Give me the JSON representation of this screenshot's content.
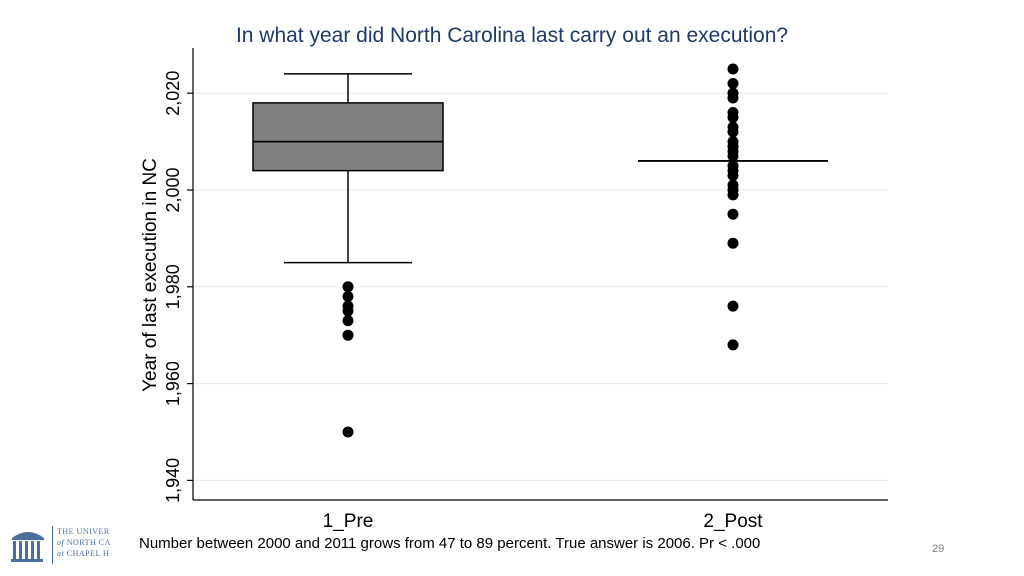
{
  "footnote": "Number between 2000 and 2011 grows from 47 to 89 percent. True answer is 2006. Pr < .000",
  "page_number": "29",
  "logo": {
    "line1": "THE UNIVER",
    "line2_prefix": "of",
    "line2_rest": "NORTH CA",
    "line3_prefix": "at",
    "line3_rest": "CHAPEL H",
    "color": "#4b6f9c",
    "icon": "old-well-icon"
  },
  "chart_data": {
    "type": "box",
    "title": "In what year did North Carolina last carry out an execution?",
    "ylabel": "Year of last execution in NC",
    "xlabel": "",
    "ylim": [
      1940,
      2024
    ],
    "yticks": [
      1940,
      1960,
      1980,
      2000,
      2020
    ],
    "ytick_labels": [
      "1,940",
      "1,960",
      "1,980",
      "2,000",
      "2,020"
    ],
    "grid": true,
    "box_color": "#808080",
    "categories": [
      "1_Pre",
      "2_Post"
    ],
    "boxes": [
      {
        "category": "1_Pre",
        "whisker_low": 1985,
        "q1": 2004,
        "median": 2010,
        "q3": 2018,
        "whisker_high": 2024,
        "outliers": [
          1980,
          1978,
          1976,
          1975,
          1973,
          1970,
          1950
        ]
      },
      {
        "category": "2_Post",
        "whisker_low": 2006,
        "q1": 2006,
        "median": 2006,
        "q3": 2006,
        "whisker_high": 2006,
        "outliers": [
          2025,
          2022,
          2020,
          2019,
          2016,
          2015,
          2013,
          2012,
          2010,
          2009,
          2008,
          2007,
          2005,
          2004,
          2003,
          2001,
          2000,
          1999,
          1995,
          1989,
          1976,
          1968
        ]
      }
    ]
  }
}
